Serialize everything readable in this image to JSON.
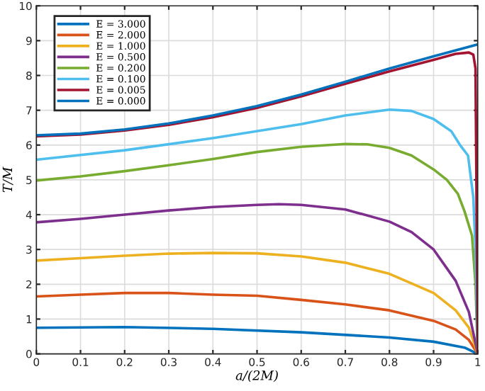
{
  "chart_data": {
    "type": "line",
    "xlabel": "a/(2M)",
    "ylabel": "T/M",
    "xlim": [
      0,
      1
    ],
    "ylim": [
      0,
      10
    ],
    "xticks": [
      0,
      0.1,
      0.2,
      0.3,
      0.4,
      0.5,
      0.6,
      0.7,
      0.8,
      0.9,
      1
    ],
    "yticks": [
      0,
      1,
      2,
      3,
      4,
      5,
      6,
      7,
      8,
      9,
      10
    ],
    "grid": true,
    "legend": "top left",
    "marker": "none",
    "line_style": "solid",
    "series": [
      {
        "name": "E = 3.000",
        "color": "#0072bd",
        "x": [
          0,
          0.2,
          0.4,
          0.6,
          0.8,
          0.9,
          0.97,
          1
        ],
        "values": [
          0.75,
          0.77,
          0.72,
          0.62,
          0.47,
          0.35,
          0.18,
          0
        ]
      },
      {
        "name": "E = 2.000",
        "color": "#d95319",
        "x": [
          0,
          0.1,
          0.2,
          0.3,
          0.4,
          0.5,
          0.6,
          0.7,
          0.8,
          0.9,
          0.95,
          0.98,
          1
        ],
        "values": [
          1.65,
          1.7,
          1.75,
          1.75,
          1.7,
          1.67,
          1.55,
          1.42,
          1.25,
          0.95,
          0.7,
          0.4,
          0
        ]
      },
      {
        "name": "E = 1.000",
        "color": "#edb120",
        "x": [
          0,
          0.1,
          0.2,
          0.3,
          0.4,
          0.5,
          0.6,
          0.7,
          0.8,
          0.9,
          0.95,
          0.98,
          1
        ],
        "values": [
          2.68,
          2.75,
          2.82,
          2.88,
          2.9,
          2.89,
          2.8,
          2.62,
          2.3,
          1.75,
          1.25,
          0.75,
          0
        ]
      },
      {
        "name": "E = 0.500",
        "color": "#7e2f8e",
        "x": [
          0,
          0.1,
          0.2,
          0.3,
          0.4,
          0.5,
          0.55,
          0.6,
          0.7,
          0.8,
          0.85,
          0.9,
          0.95,
          0.98,
          1
        ],
        "values": [
          3.78,
          3.88,
          4.0,
          4.12,
          4.22,
          4.28,
          4.3,
          4.28,
          4.15,
          3.8,
          3.5,
          3.0,
          2.1,
          1.2,
          0
        ]
      },
      {
        "name": "E = 0.200",
        "color": "#77ac30",
        "x": [
          0,
          0.1,
          0.2,
          0.3,
          0.4,
          0.5,
          0.6,
          0.7,
          0.75,
          0.8,
          0.85,
          0.9,
          0.93,
          0.955,
          0.97,
          0.987,
          0.995,
          1
        ],
        "values": [
          4.98,
          5.1,
          5.25,
          5.42,
          5.6,
          5.8,
          5.95,
          6.03,
          6.02,
          5.92,
          5.7,
          5.3,
          5.0,
          4.6,
          4.1,
          3.4,
          2.0,
          0
        ]
      },
      {
        "name": "E = 0.100",
        "color": "#4dbeee",
        "x": [
          0,
          0.2,
          0.4,
          0.6,
          0.7,
          0.8,
          0.85,
          0.9,
          0.94,
          0.96,
          0.978,
          0.99,
          0.995,
          1
        ],
        "values": [
          5.58,
          5.85,
          6.2,
          6.6,
          6.85,
          7.02,
          6.98,
          6.75,
          6.4,
          6.0,
          5.7,
          4.5,
          3.0,
          0
        ]
      },
      {
        "name": "E = 0.005",
        "color": "#a2142f",
        "x": [
          0,
          0.1,
          0.2,
          0.3,
          0.4,
          0.5,
          0.6,
          0.7,
          0.8,
          0.9,
          0.95,
          0.98,
          0.99,
          0.995,
          1
        ],
        "values": [
          6.25,
          6.3,
          6.42,
          6.58,
          6.8,
          7.07,
          7.4,
          7.76,
          8.12,
          8.45,
          8.62,
          8.66,
          8.6,
          8.2,
          0
        ]
      },
      {
        "name": "E = 0.000",
        "color": "#0072bd",
        "x": [
          0,
          0.1,
          0.2,
          0.3,
          0.4,
          0.5,
          0.6,
          0.7,
          0.8,
          0.9,
          1
        ],
        "values": [
          6.28,
          6.33,
          6.45,
          6.62,
          6.85,
          7.12,
          7.45,
          7.82,
          8.2,
          8.55,
          8.89
        ]
      }
    ]
  }
}
